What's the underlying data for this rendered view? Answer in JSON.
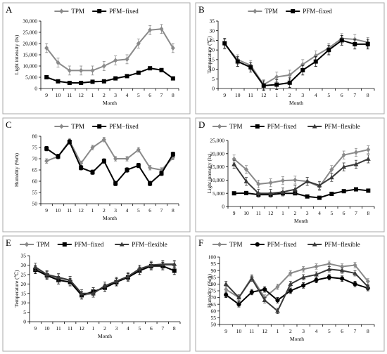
{
  "colors": {
    "TPM": "#8a8a8a",
    "PFM-fixed": "#000000",
    "PFM-flexible": "#3a3a3a"
  },
  "chart_data": [
    {
      "panel": "A",
      "type": "line",
      "categories": [
        "9",
        "10",
        "11",
        "12",
        "1",
        "2",
        "3",
        "4",
        "5",
        "6",
        "7",
        "8"
      ],
      "xlabel": "Month",
      "ylabel": "Light intensity (lx)",
      "ylim": [
        0,
        30000
      ],
      "yticks": [
        0,
        5000,
        10000,
        15000,
        20000,
        25000,
        30000
      ],
      "ytick_labels": [
        "0",
        "5,000",
        "10,000",
        "15,000",
        "20,000",
        "25,000",
        "30,000"
      ],
      "grid": false,
      "legend": "top-center",
      "series": [
        {
          "name": "TPM",
          "marker": "diamond",
          "values": [
            18000,
            11500,
            8000,
            8000,
            8000,
            10000,
            12500,
            13000,
            20000,
            26000,
            26500,
            18000
          ],
          "errors": [
            2000,
            2000,
            2000,
            2000,
            2000,
            2000,
            2000,
            2000,
            2000,
            2000,
            2000,
            2000
          ]
        },
        {
          "name": "PFM−fixed",
          "marker": "square",
          "values": [
            5000,
            3200,
            2500,
            2500,
            3000,
            3200,
            4500,
            5500,
            7000,
            9000,
            8200,
            4500
          ],
          "errors": [
            0,
            0,
            0,
            0,
            0,
            0,
            0,
            0,
            0,
            0,
            0,
            0
          ]
        }
      ]
    },
    {
      "panel": "B",
      "type": "line",
      "categories": [
        "9",
        "10",
        "11",
        "12",
        "1",
        "2",
        "3",
        "4",
        "5",
        "6",
        "7",
        "8"
      ],
      "xlabel": "Month",
      "ylabel": "Temperature (℃)",
      "ylim": [
        0,
        35
      ],
      "yticks": [
        0,
        5,
        10,
        15,
        20,
        25,
        30,
        35
      ],
      "ytick_labels": [
        "0",
        "5",
        "10",
        "15",
        "20",
        "25",
        "30",
        "35"
      ],
      "grid": false,
      "legend": "top-center",
      "series": [
        {
          "name": "TPM",
          "marker": "diamond",
          "values": [
            23,
            15,
            12,
            2,
            6,
            7,
            12.5,
            17,
            21,
            26,
            25.5,
            24
          ],
          "errors": [
            2.5,
            2.5,
            2.5,
            2.5,
            2.5,
            2.5,
            2.5,
            2.5,
            2.5,
            2.5,
            2.5,
            2.5
          ]
        },
        {
          "name": "PFM−fixed",
          "marker": "square",
          "values": [
            23.5,
            14,
            11,
            1.5,
            2,
            3,
            9.5,
            14,
            20,
            25,
            23,
            23
          ],
          "errors": [
            2.5,
            2.5,
            2.5,
            2.5,
            2.5,
            2.5,
            2.5,
            2.5,
            2.5,
            2.5,
            2.5,
            2.5
          ]
        }
      ]
    },
    {
      "panel": "C",
      "type": "line",
      "categories": [
        "9",
        "10",
        "11",
        "12",
        "1",
        "2",
        "3",
        "4",
        "5",
        "6",
        "7",
        "8"
      ],
      "xlabel": "Month",
      "ylabel": "Humidity (%rh)",
      "ylim": [
        50,
        80
      ],
      "yticks": [
        50,
        55,
        60,
        65,
        70,
        75,
        80
      ],
      "ytick_labels": [
        "50",
        "55",
        "60",
        "65",
        "70",
        "75",
        "80"
      ],
      "grid": false,
      "legend": "top-center",
      "series": [
        {
          "name": "TPM",
          "marker": "diamond",
          "values": [
            69,
            71,
            78,
            68,
            75,
            78.5,
            70,
            70,
            74,
            66,
            65,
            70.5
          ],
          "errors": [
            1,
            1,
            1,
            1,
            1,
            1,
            1,
            1,
            1,
            1,
            1,
            1
          ]
        },
        {
          "name": "PFM−fixed",
          "marker": "square",
          "values": [
            74.5,
            71,
            77.5,
            66,
            64,
            69,
            59,
            65,
            67,
            59,
            63.5,
            72
          ],
          "errors": [
            1,
            1,
            1,
            1,
            1,
            1,
            1,
            1,
            1,
            1,
            1,
            1
          ]
        }
      ]
    },
    {
      "panel": "D",
      "type": "line",
      "categories": [
        "9",
        "10",
        "11",
        "12",
        "1",
        "2",
        "3",
        "4",
        "5",
        "6",
        "7",
        "8"
      ],
      "xlabel": "Month",
      "ylabel": "Light intensity (lx)",
      "ylim": [
        0,
        25000
      ],
      "yticks": [
        0,
        5000,
        10000,
        15000,
        20000,
        25000
      ],
      "ytick_labels": [
        "0",
        "5,000",
        "10,000",
        "15,000",
        "20,000",
        "25,000"
      ],
      "grid": false,
      "legend": "top",
      "series": [
        {
          "name": "TPM",
          "marker": "diamond",
          "values": [
            18000,
            14000,
            8500,
            9000,
            9800,
            10000,
            9500,
            7500,
            14000,
            19500,
            20500,
            21500
          ],
          "errors": [
            1500,
            1500,
            1500,
            1500,
            1500,
            1500,
            1500,
            1500,
            1500,
            1500,
            1500,
            1500
          ]
        },
        {
          "name": "PFM−fixed",
          "marker": "square",
          "values": [
            5000,
            5100,
            4500,
            4500,
            5000,
            5000,
            3800,
            3300,
            4800,
            5800,
            6500,
            6000
          ],
          "errors": [
            0,
            0,
            0,
            0,
            0,
            0,
            0,
            0,
            0,
            0,
            0,
            0
          ]
        },
        {
          "name": "PFM−flexible",
          "marker": "triangle",
          "values": [
            16000,
            9500,
            5000,
            5000,
            5500,
            6500,
            9500,
            8000,
            11000,
            15000,
            16000,
            18000
          ],
          "errors": [
            1500,
            1500,
            1500,
            1500,
            1500,
            1500,
            1500,
            1500,
            1500,
            1500,
            1500,
            1500
          ]
        }
      ]
    },
    {
      "panel": "E",
      "type": "line",
      "categories": [
        "9",
        "10",
        "11",
        "11",
        "12",
        "1",
        "2",
        "3",
        "4",
        "5",
        "6",
        "7",
        "8"
      ],
      "xlabel": "Month",
      "ylabel": "Temperature (℃)",
      "ylim": [
        0,
        35
      ],
      "yticks": [
        0,
        5,
        10,
        15,
        20,
        25,
        30,
        35
      ],
      "ytick_labels": [
        "0",
        "5",
        "10",
        "15",
        "20",
        "25",
        "30",
        "35"
      ],
      "grid": false,
      "legend": "top",
      "series": [
        {
          "name": "TPM",
          "marker": "diamond",
          "values": [
            28,
            25,
            23,
            22,
            14,
            15,
            19,
            21,
            24,
            28,
            29.5,
            30,
            30
          ],
          "errors": [
            2,
            2,
            2,
            2,
            2,
            2,
            2,
            2,
            2,
            2,
            2,
            2,
            2
          ]
        },
        {
          "name": "PFM−fixed",
          "marker": "square",
          "values": [
            27.5,
            24.5,
            22,
            21,
            14,
            16,
            18,
            21,
            23.5,
            27,
            29.5,
            29.5,
            27
          ],
          "errors": [
            2,
            2,
            2,
            2,
            2,
            2,
            2,
            2,
            2,
            2,
            2,
            2,
            2
          ]
        },
        {
          "name": "PFM−flexible",
          "marker": "triangle",
          "values": [
            29,
            25,
            23.5,
            22,
            15,
            15,
            19,
            21.5,
            24,
            28,
            30,
            30.5,
            30.5
          ],
          "errors": [
            2,
            2,
            2,
            2,
            2,
            2,
            2,
            2,
            2,
            2,
            2,
            2,
            2
          ]
        }
      ]
    },
    {
      "panel": "F",
      "type": "line",
      "categories": [
        "9",
        "10",
        "11",
        "12",
        "1",
        "2",
        "3",
        "4",
        "5",
        "6",
        "7",
        "8"
      ],
      "xlabel": "Month",
      "ylabel": "Humidity (%rh)",
      "ylim": [
        50,
        100
      ],
      "yticks": [
        50,
        55,
        60,
        65,
        70,
        75,
        80,
        85,
        90,
        95,
        100
      ],
      "ytick_labels": [
        "50",
        "55",
        "60",
        "65",
        "70",
        "75",
        "80",
        "85",
        "90",
        "95",
        "100"
      ],
      "grid": false,
      "legend": "top",
      "series": [
        {
          "name": "TPM",
          "marker": "diamond",
          "values": [
            76,
            70,
            85,
            70,
            78,
            88,
            91,
            93,
            95,
            93,
            94,
            82
          ],
          "errors": [
            2,
            2,
            2,
            2,
            2,
            2,
            2,
            2,
            2,
            2,
            2,
            2
          ]
        },
        {
          "name": "PFM−fixed",
          "marker": "circle",
          "values": [
            72,
            65,
            74,
            76,
            68,
            75,
            79,
            83,
            85,
            84,
            80,
            77
          ],
          "errors": [
            2,
            2,
            2,
            2,
            2,
            2,
            2,
            2,
            2,
            2,
            2,
            2
          ]
        },
        {
          "name": "PFM−flexible",
          "marker": "triangle",
          "values": [
            80,
            70,
            84,
            68,
            60,
            80,
            85,
            87,
            91,
            90,
            88,
            78
          ],
          "errors": [
            2,
            2,
            2,
            2,
            2,
            2,
            2,
            2,
            2,
            2,
            2,
            2
          ]
        }
      ]
    }
  ]
}
